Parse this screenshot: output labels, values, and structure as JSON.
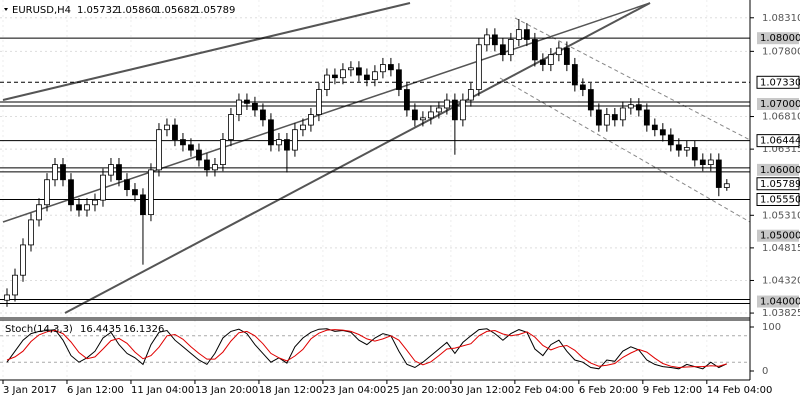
{
  "chart_data": {
    "type": "candlestick",
    "header": {
      "symbol": "EURUSD,H4",
      "ohlc": [
        "1.05732",
        "1.05860",
        "1.05682",
        "1.05789"
      ]
    },
    "xlim": [
      0,
      93.4
    ],
    "xticks": [
      {
        "value": 0,
        "label": "3 Jan 2017"
      },
      {
        "value": 8,
        "label": "6 Jan 12:00"
      },
      {
        "value": 16,
        "label": "11 Jan 04:00"
      },
      {
        "value": 24,
        "label": "13 Jan 20:00"
      },
      {
        "value": 32,
        "label": "18 Jan 12:00"
      },
      {
        "value": 40,
        "label": "23 Jan 04:00"
      },
      {
        "value": 48,
        "label": "25 Jan 20:00"
      },
      {
        "value": 56,
        "label": "30 Jan 12:00"
      },
      {
        "value": 64,
        "label": "2 Feb 04:00"
      },
      {
        "value": 72,
        "label": "6 Feb 20:00"
      },
      {
        "value": 80,
        "label": "9 Feb 12:00"
      },
      {
        "value": 88,
        "label": "14 Feb 04:00"
      }
    ],
    "ylim": [
      1.0375,
      1.0858
    ],
    "yticks": [
      {
        "value": 1.0831,
        "label": "1.08310"
      },
      {
        "value": 1.078,
        "label": "1.07800"
      },
      {
        "value": 1.0681,
        "label": "1.06810"
      },
      {
        "value": 1.06315,
        "label": "1.06315"
      },
      {
        "value": 1.0531,
        "label": "1.05310"
      },
      {
        "value": 1.04815,
        "label": "1.04815"
      },
      {
        "value": 1.0432,
        "label": "1.04320"
      },
      {
        "value": 1.03825,
        "label": "1.03825"
      }
    ],
    "grid": true,
    "levels": [
      {
        "value": 1.08,
        "label": "1.08000",
        "line": "solid",
        "box": "gray"
      },
      {
        "value": 1.0733,
        "label": "1.07330",
        "line": "dashed",
        "box": "outline"
      },
      {
        "value": 1.07,
        "label": "1.07000",
        "line": "double",
        "box": "gray"
      },
      {
        "value": 1.06444,
        "label": "1.06444",
        "line": "solid",
        "box": "outline"
      },
      {
        "value": 1.06,
        "label": "1.06000",
        "line": "double",
        "box": "gray"
      },
      {
        "value": 1.05789,
        "label": "1.05789",
        "line": "none",
        "box": "outline"
      },
      {
        "value": 1.0555,
        "label": "1.05550",
        "line": "solid",
        "box": "outline"
      },
      {
        "value": 1.05,
        "label": "1.05000",
        "line": "none",
        "box": "gray"
      },
      {
        "value": 1.04,
        "label": "1.04000",
        "line": "double",
        "box": "gray"
      }
    ],
    "candle_color": "#000000",
    "candles": {
      "open": [
        1.0402,
        1.041,
        1.044,
        1.0486,
        1.0524,
        1.0547,
        1.0585,
        1.0608,
        1.0585,
        1.0547,
        1.0539,
        1.0547,
        1.0554,
        1.0592,
        1.0608,
        1.0585,
        1.057,
        1.0562,
        1.0532,
        1.06,
        1.0661,
        1.0668,
        1.0646,
        1.0638,
        1.063,
        1.0615,
        1.06,
        1.0608,
        1.0646,
        1.0684,
        1.0706,
        1.0701,
        1.0691,
        1.0676,
        1.0638,
        1.0646,
        1.063,
        1.0661,
        1.0668,
        1.0684,
        1.0722,
        1.0744,
        1.074,
        1.0752,
        1.0755,
        1.0744,
        1.0737,
        1.0749,
        1.076,
        1.0752,
        1.0722,
        1.0691,
        1.0676,
        1.0679,
        1.0688,
        1.0694,
        1.0706,
        1.0676,
        1.0706,
        1.0722,
        1.079,
        1.0805,
        1.079,
        1.0775,
        1.0798,
        1.0813,
        1.0798,
        1.0767,
        1.076,
        1.0775,
        1.0785,
        1.076,
        1.0729,
        1.0722,
        1.0691,
        1.0668,
        1.0684,
        1.0676,
        1.0694,
        1.0699,
        1.0691,
        1.0668,
        1.0661,
        1.0653,
        1.0638,
        1.063,
        1.0634,
        1.0615,
        1.0608,
        1.0615,
        1.05732
      ],
      "high": [
        1.042,
        1.045,
        1.0496,
        1.0534,
        1.0557,
        1.0595,
        1.0618,
        1.0618,
        1.0595,
        1.0557,
        1.0557,
        1.0564,
        1.0602,
        1.0618,
        1.0618,
        1.0595,
        1.058,
        1.0572,
        1.061,
        1.0671,
        1.0678,
        1.0678,
        1.0656,
        1.0648,
        1.064,
        1.0625,
        1.0618,
        1.0656,
        1.0694,
        1.0716,
        1.0716,
        1.0711,
        1.0701,
        1.0686,
        1.0656,
        1.0656,
        1.0671,
        1.0678,
        1.0694,
        1.0732,
        1.0754,
        1.0754,
        1.0762,
        1.0765,
        1.0765,
        1.0754,
        1.0759,
        1.077,
        1.077,
        1.0762,
        1.0732,
        1.0701,
        1.0689,
        1.0698,
        1.0704,
        1.0716,
        1.0716,
        1.0716,
        1.0732,
        1.08,
        1.0815,
        1.0815,
        1.08,
        1.0808,
        1.0829,
        1.0823,
        1.0808,
        1.0777,
        1.0785,
        1.0795,
        1.0795,
        1.077,
        1.0739,
        1.0732,
        1.0701,
        1.0694,
        1.0694,
        1.0704,
        1.0709,
        1.0709,
        1.0701,
        1.0678,
        1.0671,
        1.0663,
        1.0648,
        1.0644,
        1.0644,
        1.0625,
        1.0625,
        1.0625,
        1.0586
      ],
      "low": [
        1.0392,
        1.04,
        1.043,
        1.0476,
        1.0514,
        1.0537,
        1.0575,
        1.0575,
        1.0537,
        1.0529,
        1.0529,
        1.0537,
        1.0544,
        1.0582,
        1.0575,
        1.056,
        1.0552,
        1.0456,
        1.0522,
        1.059,
        1.0651,
        1.0636,
        1.0628,
        1.062,
        1.0605,
        1.059,
        1.059,
        1.0598,
        1.0636,
        1.0674,
        1.0691,
        1.0681,
        1.0666,
        1.0628,
        1.0628,
        1.0596,
        1.062,
        1.0651,
        1.0658,
        1.0674,
        1.0712,
        1.073,
        1.073,
        1.0742,
        1.0734,
        1.0727,
        1.0727,
        1.0739,
        1.0742,
        1.0712,
        1.0681,
        1.0666,
        1.0666,
        1.0669,
        1.0678,
        1.0684,
        1.0623,
        1.0666,
        1.0696,
        1.0712,
        1.078,
        1.078,
        1.0765,
        1.0765,
        1.0788,
        1.0788,
        1.0757,
        1.075,
        1.075,
        1.0765,
        1.075,
        1.0719,
        1.0712,
        1.0681,
        1.0658,
        1.0658,
        1.0666,
        1.0666,
        1.0684,
        1.0681,
        1.0658,
        1.0651,
        1.0643,
        1.0628,
        1.062,
        1.062,
        1.0605,
        1.0598,
        1.0598,
        1.056,
        1.05682
      ],
      "close": [
        1.041,
        1.044,
        1.0486,
        1.0524,
        1.0547,
        1.0585,
        1.0608,
        1.0585,
        1.0547,
        1.0539,
        1.0547,
        1.0554,
        1.0592,
        1.0608,
        1.0585,
        1.057,
        1.0562,
        1.0532,
        1.06,
        1.0661,
        1.0668,
        1.0646,
        1.0638,
        1.063,
        1.0615,
        1.06,
        1.0608,
        1.0646,
        1.0684,
        1.0706,
        1.0701,
        1.0691,
        1.0676,
        1.0638,
        1.0646,
        1.063,
        1.0661,
        1.0668,
        1.0684,
        1.0722,
        1.0744,
        1.074,
        1.0752,
        1.0755,
        1.0744,
        1.0737,
        1.0749,
        1.076,
        1.0752,
        1.0722,
        1.0691,
        1.0676,
        1.0679,
        1.0688,
        1.0694,
        1.0706,
        1.0676,
        1.0706,
        1.0722,
        1.079,
        1.0805,
        1.079,
        1.0775,
        1.0798,
        1.0813,
        1.0798,
        1.0767,
        1.076,
        1.0775,
        1.0785,
        1.076,
        1.0729,
        1.0722,
        1.0691,
        1.0668,
        1.0684,
        1.0676,
        1.0694,
        1.0699,
        1.0691,
        1.0668,
        1.0661,
        1.0653,
        1.0638,
        1.063,
        1.0634,
        1.0615,
        1.0608,
        1.0615,
        1.05732,
        1.05789
      ]
    },
    "indicator": {
      "name": "Stoch(14,3,3)",
      "ylim": [
        0,
        100
      ],
      "yticks": [
        100,
        0
      ],
      "levels": [
        80,
        20
      ],
      "series": [
        {
          "color": "#000000",
          "values": [
            20,
            45,
            70,
            85,
            90,
            92,
            94,
            70,
            35,
            20,
            30,
            45,
            75,
            88,
            60,
            40,
            30,
            15,
            60,
            88,
            92,
            70,
            55,
            40,
            25,
            15,
            40,
            75,
            90,
            95,
            85,
            60,
            40,
            20,
            30,
            18,
            55,
            75,
            88,
            95,
            96,
            90,
            92,
            88,
            70,
            60,
            75,
            85,
            80,
            45,
            15,
            8,
            20,
            35,
            50,
            65,
            40,
            65,
            80,
            94,
            96,
            85,
            70,
            85,
            94,
            88,
            50,
            35,
            60,
            70,
            45,
            25,
            20,
            8,
            5,
            25,
            22,
            45,
            55,
            48,
            25,
            15,
            10,
            8,
            5,
            15,
            10,
            5,
            20,
            8,
            16.4435
          ]
        },
        {
          "color": "#e00000",
          "values": [
            25,
            32,
            45,
            67,
            82,
            89,
            92,
            85,
            66,
            42,
            28,
            32,
            50,
            69,
            74,
            63,
            43,
            28,
            35,
            54,
            80,
            83,
            72,
            55,
            40,
            27,
            27,
            43,
            68,
            87,
            90,
            80,
            62,
            40,
            30,
            23,
            34,
            49,
            73,
            86,
            93,
            94,
            93,
            90,
            83,
            73,
            68,
            73,
            80,
            70,
            47,
            23,
            14,
            21,
            35,
            50,
            52,
            57,
            62,
            80,
            90,
            92,
            84,
            80,
            83,
            89,
            77,
            58,
            48,
            55,
            58,
            47,
            30,
            18,
            11,
            13,
            17,
            31,
            41,
            49,
            43,
            29,
            17,
            11,
            8,
            9,
            10,
            10,
            12,
            11,
            16.1326
          ]
        }
      ]
    }
  }
}
